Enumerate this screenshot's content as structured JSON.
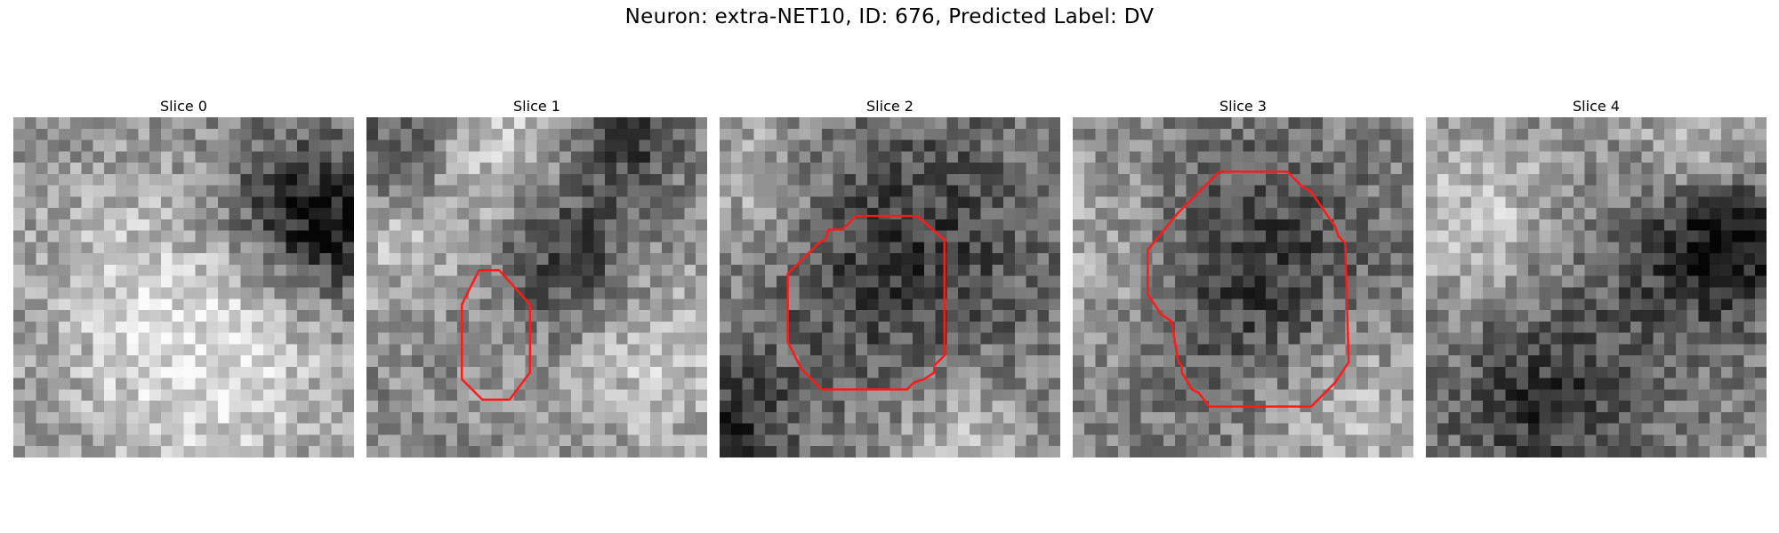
{
  "title": "Neuron: extra-NET10, ID: 676, Predicted Label: DV",
  "contour_color": "#ff1a1a",
  "slices": [
    {
      "label": "Slice 0",
      "dark_blobs": [
        [
          0.8,
          0.25,
          0.18
        ],
        [
          0.95,
          0.35,
          0.12
        ]
      ],
      "light_blobs": [
        [
          0.45,
          0.5,
          0.3
        ],
        [
          0.6,
          0.8,
          0.25
        ]
      ],
      "contour": []
    },
    {
      "label": "Slice 1",
      "dark_blobs": [
        [
          0.6,
          0.42,
          0.15
        ],
        [
          0.1,
          0.12,
          0.12
        ],
        [
          0.75,
          0.05,
          0.12
        ]
      ],
      "light_blobs": [
        [
          0.1,
          0.3,
          0.18
        ],
        [
          0.85,
          0.7,
          0.2
        ],
        [
          0.4,
          0.05,
          0.15
        ]
      ],
      "contour": [
        [
          0.33,
          0.45
        ],
        [
          0.39,
          0.45
        ],
        [
          0.48,
          0.55
        ],
        [
          0.48,
          0.75
        ],
        [
          0.42,
          0.83
        ],
        [
          0.34,
          0.83
        ],
        [
          0.28,
          0.77
        ],
        [
          0.28,
          0.55
        ]
      ]
    },
    {
      "label": "Slice 2",
      "dark_blobs": [
        [
          0.52,
          0.4,
          0.32
        ],
        [
          0.05,
          0.9,
          0.12
        ]
      ],
      "light_blobs": [
        [
          0.1,
          0.2,
          0.18
        ],
        [
          0.7,
          0.92,
          0.15
        ]
      ],
      "contour": [
        [
          0.4,
          0.29
        ],
        [
          0.58,
          0.29
        ],
        [
          0.66,
          0.36
        ],
        [
          0.66,
          0.7
        ],
        [
          0.63,
          0.73
        ],
        [
          0.63,
          0.75
        ],
        [
          0.6,
          0.77
        ],
        [
          0.57,
          0.78
        ],
        [
          0.55,
          0.8
        ],
        [
          0.3,
          0.8
        ],
        [
          0.24,
          0.74
        ],
        [
          0.22,
          0.7
        ],
        [
          0.2,
          0.66
        ],
        [
          0.2,
          0.46
        ],
        [
          0.29,
          0.37
        ],
        [
          0.31,
          0.36
        ],
        [
          0.32,
          0.33
        ],
        [
          0.36,
          0.33
        ]
      ]
    },
    {
      "label": "Slice 3",
      "dark_blobs": [
        [
          0.5,
          0.45,
          0.28
        ]
      ],
      "light_blobs": [
        [
          0.08,
          0.4,
          0.2
        ],
        [
          0.8,
          0.85,
          0.18
        ]
      ],
      "contour": [
        [
          0.43,
          0.16
        ],
        [
          0.63,
          0.16
        ],
        [
          0.67,
          0.2
        ],
        [
          0.7,
          0.22
        ],
        [
          0.77,
          0.32
        ],
        [
          0.78,
          0.35
        ],
        [
          0.8,
          0.37
        ],
        [
          0.81,
          0.72
        ],
        [
          0.77,
          0.78
        ],
        [
          0.7,
          0.85
        ],
        [
          0.4,
          0.85
        ],
        [
          0.37,
          0.81
        ],
        [
          0.35,
          0.8
        ],
        [
          0.32,
          0.75
        ],
        [
          0.32,
          0.73
        ],
        [
          0.31,
          0.72
        ],
        [
          0.29,
          0.6
        ],
        [
          0.26,
          0.58
        ],
        [
          0.22,
          0.52
        ],
        [
          0.22,
          0.39
        ],
        [
          0.31,
          0.28
        ],
        [
          0.34,
          0.25
        ]
      ]
    },
    {
      "label": "Slice 4",
      "dark_blobs": [
        [
          0.35,
          0.83,
          0.22
        ],
        [
          0.8,
          0.4,
          0.2
        ],
        [
          0.9,
          0.35,
          0.1
        ]
      ],
      "light_blobs": [
        [
          0.15,
          0.3,
          0.18
        ],
        [
          0.8,
          0.1,
          0.15
        ]
      ],
      "contour": []
    }
  ]
}
